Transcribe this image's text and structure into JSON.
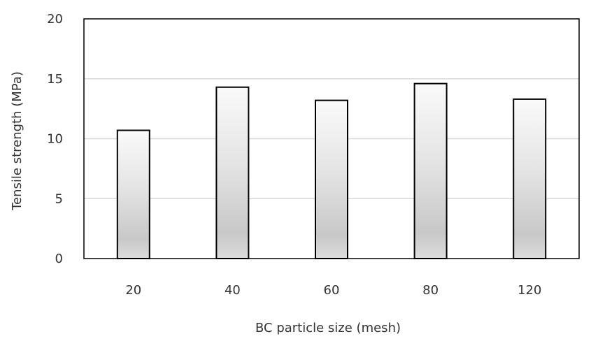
{
  "chart_data": {
    "type": "bar",
    "title": "",
    "xlabel": "BC particle size (mesh)",
    "ylabel": "Tensile strength (MPa)",
    "categories": [
      "20",
      "40",
      "60",
      "80",
      "120"
    ],
    "values": [
      10.7,
      14.3,
      13.2,
      14.6,
      13.3
    ],
    "ylim": [
      0,
      20
    ],
    "yticks": [
      "0",
      "5",
      "10",
      "15",
      "20"
    ],
    "grid": "horizontal",
    "legend": "none",
    "colors": {
      "bar_fill_light": "#fafafa",
      "bar_fill_dark": "#c8c8c8",
      "bar_stroke": "#000000",
      "grid": "#d9d9d9",
      "frame": "#000000",
      "text": "#333333"
    }
  }
}
